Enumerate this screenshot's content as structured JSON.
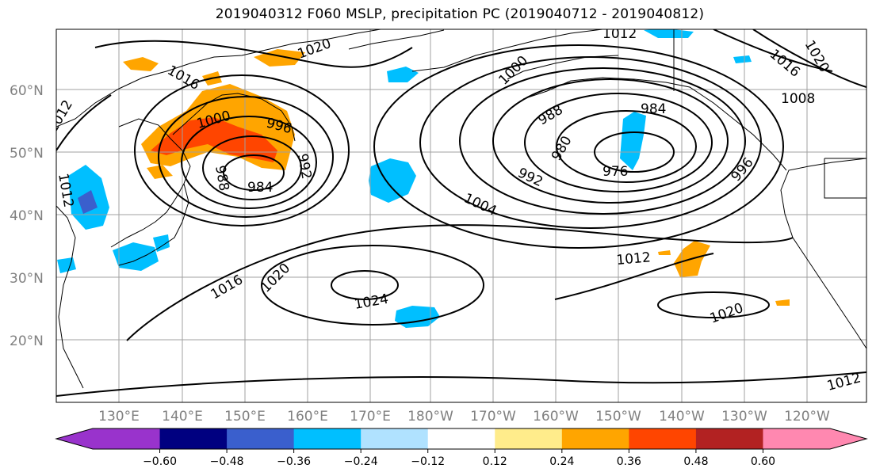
{
  "title": "2019040312 F060 MSLP, precipitation PC (2019040712 - 2019040812)",
  "map": {
    "lat_labels": [
      "60°N",
      "50°N",
      "40°N",
      "30°N",
      "20°N"
    ],
    "lon_labels": [
      "130°E",
      "140°E",
      "150°E",
      "160°E",
      "170°E",
      "180°W",
      "170°W",
      "160°W",
      "150°W",
      "140°W",
      "130°W",
      "120°W"
    ],
    "isobar_labels": [
      "1012",
      "1020",
      "1016",
      "1012",
      "1000",
      "996",
      "992",
      "984",
      "988",
      "1012",
      "1000",
      "988",
      "984",
      "980",
      "976",
      "992",
      "1004",
      "996",
      "1008",
      "1016",
      "1020",
      "1012",
      "1016",
      "1020",
      "1024",
      "1020",
      "1012"
    ],
    "colors": {
      "land_outline": "#000000",
      "grid": "#a0a0a0"
    }
  },
  "colorbar": {
    "ticks": [
      "−0.60",
      "−0.48",
      "−0.36",
      "−0.24",
      "−0.12",
      "0.12",
      "0.24",
      "0.36",
      "0.48",
      "0.60"
    ],
    "colors": [
      "#9933cc",
      "#000080",
      "#3a5fcd",
      "#00bfff",
      "#b0e2ff",
      "#ffffff",
      "#ffec8b",
      "#ffa500",
      "#ff4500",
      "#b22222",
      "#ff88b0"
    ]
  }
}
